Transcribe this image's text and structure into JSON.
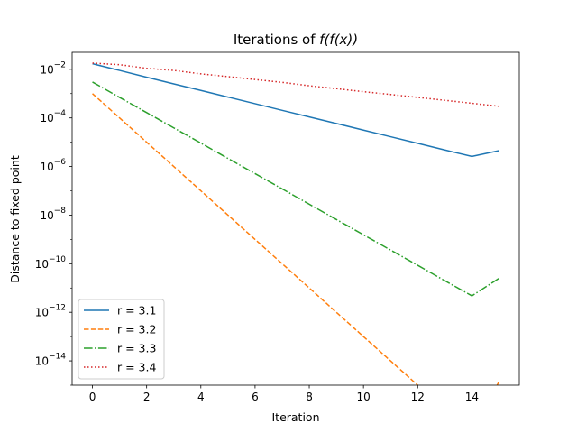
{
  "chart_data": {
    "type": "line",
    "title_prefix": "Iterations of ",
    "title_math": "f(f(x))",
    "xlabel": "Iteration",
    "ylabel": "Distance to fixed point",
    "xlim": [
      -0.75,
      15.75
    ],
    "ylim": [
      1e-15,
      0.05
    ],
    "yscale": "log",
    "grid": false,
    "legend_placement": "lower left",
    "xticks": [
      0,
      2,
      4,
      6,
      8,
      10,
      12,
      14
    ],
    "yticks": [
      {
        "base": "10",
        "exp": "−2",
        "value": 0.01
      },
      {
        "base": "10",
        "exp": "−4",
        "value": 0.0001
      },
      {
        "base": "10",
        "exp": "−6",
        "value": 1e-06
      },
      {
        "base": "10",
        "exp": "−8",
        "value": 1e-08
      },
      {
        "base": "10",
        "exp": "−10",
        "value": 1e-10
      },
      {
        "base": "10",
        "exp": "−12",
        "value": 1e-12
      },
      {
        "base": "10",
        "exp": "−14",
        "value": 1e-14
      }
    ],
    "x": [
      0,
      1,
      2,
      3,
      4,
      5,
      6,
      7,
      8,
      9,
      10,
      11,
      12,
      13,
      14,
      15
    ],
    "series": [
      {
        "name": "r = 3.1",
        "color": "#1f77b4",
        "dash": "",
        "values": [
          0.017,
          0.009,
          0.0047,
          0.0025,
          0.00135,
          0.00072,
          0.000385,
          0.000205,
          0.00011,
          5.9e-05,
          3.15e-05,
          1.68e-05,
          9e-06,
          4.8e-06,
          2.6e-06,
          4.5e-06
        ]
      },
      {
        "name": "r = 3.2",
        "color": "#ff7f0e",
        "dash": "5.5,2.4",
        "values": [
          0.001,
          0.0001,
          1e-05,
          1e-06,
          1e-07,
          1e-08,
          1e-09,
          1e-10,
          1e-11,
          1e-12,
          1e-13,
          1e-14,
          1e-15,
          1e-16,
          1e-17,
          1.4e-15
        ]
      },
      {
        "name": "r = 3.3",
        "color": "#2ca02c",
        "dash": "9.6,2.4,1.5,2.4",
        "values": [
          0.003,
          0.0007,
          0.000165,
          3.9e-05,
          9.2e-06,
          2.15e-06,
          5.1e-07,
          1.2e-07,
          2.8e-08,
          6.6e-09,
          1.55e-09,
          3.65e-10,
          8.6e-11,
          2e-11,
          4.75e-12,
          2.5e-11
        ]
      },
      {
        "name": "r = 3.4",
        "color": "#d62728",
        "dash": "1.5,2.5",
        "values": [
          0.018,
          0.0155,
          0.011,
          0.009,
          0.0065,
          0.005,
          0.0038,
          0.0029,
          0.0021,
          0.0016,
          0.0012,
          0.00092,
          0.0007,
          0.00053,
          0.0004,
          0.0003
        ]
      }
    ]
  }
}
